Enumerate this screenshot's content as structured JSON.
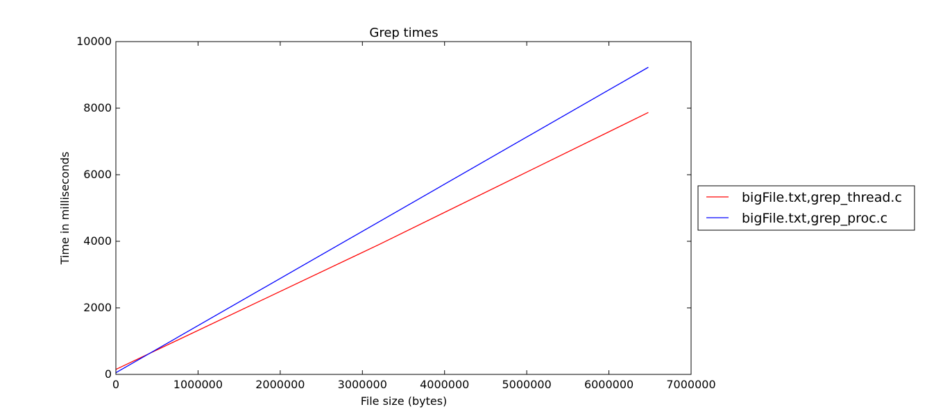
{
  "chart_data": {
    "type": "line",
    "title": "Grep times",
    "xlabel": "File size (bytes)",
    "ylabel": "Time in milliseconds",
    "xlim": [
      0,
      7000000
    ],
    "ylim": [
      0,
      10000
    ],
    "xticks": [
      0,
      1000000,
      2000000,
      3000000,
      4000000,
      5000000,
      6000000,
      7000000
    ],
    "yticks": [
      0,
      2000,
      4000,
      6000,
      8000,
      10000
    ],
    "xtick_labels": [
      "0",
      "1000000",
      "2000000",
      "3000000",
      "4000000",
      "5000000",
      "6000000",
      "7000000"
    ],
    "ytick_labels": [
      "0",
      "2000",
      "4000",
      "6000",
      "8000",
      "10000"
    ],
    "grid": false,
    "legend_placement": "outside-right",
    "series": [
      {
        "name": "bigFile.txt,grep_thread.c",
        "color": "#ff0000",
        "x": [
          0,
          3200000,
          6480000
        ],
        "y": [
          150,
          3900,
          7870
        ]
      },
      {
        "name": "bigFile.txt,grep_proc.c",
        "color": "#0000ff",
        "x": [
          0,
          6480000
        ],
        "y": [
          50,
          9230
        ]
      }
    ]
  }
}
